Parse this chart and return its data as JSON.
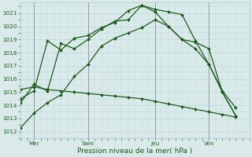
{
  "xlabel": "Pression niveau de la mer( hPa )",
  "ylim": [
    1011.5,
    1021.8
  ],
  "xlim": [
    0,
    17
  ],
  "yticks": [
    1012,
    1013,
    1014,
    1015,
    1016,
    1017,
    1018,
    1019,
    1020,
    1021
  ],
  "xtick_positions": [
    1,
    5,
    10,
    14
  ],
  "xtick_labels": [
    "Mer",
    "Sam",
    "Jeu",
    "Ven"
  ],
  "vline_positions": [
    1,
    5,
    10,
    14
  ],
  "background_color": "#daeaea",
  "grid_color": "#c0d8d8",
  "line_color": "#1a5c1a",
  "series1": [
    1012.3,
    1013.4,
    1014.2,
    1014.8,
    1016.2,
    1017.1,
    1018.5,
    1019.1,
    1019.5,
    1019.9,
    1020.5,
    1020.0,
    1019.0,
    1018.3,
    1017.1,
    1015.1,
    1013.8
  ],
  "series2": [
    1014.2,
    1015.6,
    1015.1,
    1018.7,
    1018.3,
    1019.0,
    1019.8,
    1020.4,
    1020.5,
    1021.6,
    1021.3,
    1021.1,
    1020.9,
    1018.9,
    1017.1,
    1015.0,
    1013.2
  ],
  "series3": [
    1014.5,
    1015.1,
    1018.9,
    1018.2,
    1019.1,
    1019.3,
    1019.9,
    1020.3,
    1021.2,
    1021.6,
    1021.1,
    1020.0,
    1019.0,
    1018.8,
    1018.3,
    1015.0,
    1013.2
  ],
  "series4": [
    1015.2,
    1015.4,
    1015.2,
    1015.1,
    1015.0,
    1014.9,
    1014.8,
    1014.7,
    1014.6,
    1014.5,
    1014.3,
    1014.1,
    1013.9,
    1013.7,
    1013.5,
    1013.3,
    1013.1
  ],
  "marker": "D",
  "marker_size": 2.0,
  "linewidth": 0.9,
  "xlabel_fontsize": 6.5,
  "tick_fontsize": 5.2
}
